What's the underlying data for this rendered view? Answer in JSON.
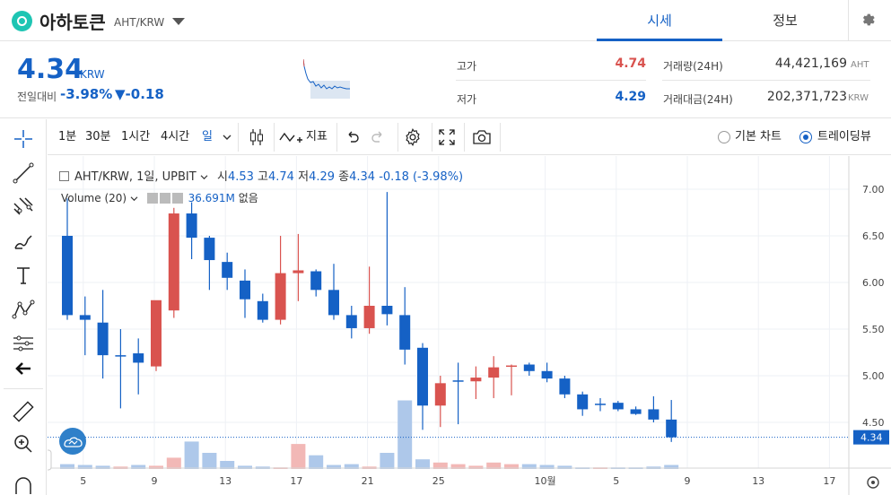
{
  "header": {
    "coin_name": "아하토큰",
    "pair": "AHT/KRW",
    "tabs": [
      {
        "label": "시세",
        "active": true
      },
      {
        "label": "정보",
        "active": false
      }
    ]
  },
  "summary": {
    "price": "4.34",
    "unit": "KRW",
    "change_label": "전일대비",
    "change_rate": "-3.98%",
    "change_value": "▼-0.18",
    "high_label": "고가",
    "high_value": "4.74",
    "low_label": "저가",
    "low_value": "4.29",
    "volume_label": "거래량(24H)",
    "volume_value": "44,421,169",
    "volume_unit": "AHT",
    "amount_label": "거래대금(24H)",
    "amount_value": "202,371,723",
    "amount_unit": "KRW"
  },
  "toolbar": {
    "intervals": [
      "1분",
      "30분",
      "1시간",
      "4시간",
      "일"
    ],
    "active_interval": "일",
    "indicator_label": "지표",
    "basic_chart_label": "기본 차트",
    "tradingview_label": "트레이딩뷰"
  },
  "legend": {
    "symbol": "AHT/KRW, 1일, UPBIT",
    "open_label": "시",
    "open": "4.53",
    "high_label": "고",
    "high": "4.74",
    "low_label": "저",
    "low": "4.29",
    "close_label": "종",
    "close": "4.34",
    "change": "-0.18 (-3.98%)",
    "volume_title": "Volume (20)",
    "volume_value": "36.691M",
    "volume_extra": "없음"
  },
  "colors": {
    "up": "#d9534f",
    "down": "#1561c5",
    "accent": "#1561c5"
  },
  "chart_data": {
    "type": "candlestick",
    "y_axis_ticks": [
      "7.00",
      "6.50",
      "6.00",
      "5.50",
      "5.00",
      "4.50"
    ],
    "x_axis_ticks": [
      "5",
      "9",
      "13",
      "17",
      "21",
      "25",
      "10월",
      "5",
      "9",
      "13",
      "17"
    ],
    "ylim": [
      4.0,
      7.2
    ],
    "last_price_label": "4.34",
    "candles": [
      {
        "o": 6.5,
        "h": 6.9,
        "l": 5.6,
        "c": 5.65
      },
      {
        "o": 5.65,
        "h": 5.85,
        "l": 5.22,
        "c": 5.6
      },
      {
        "o": 5.57,
        "h": 5.92,
        "l": 4.97,
        "c": 5.22
      },
      {
        "o": 5.22,
        "h": 5.5,
        "l": 4.65,
        "c": 5.22
      },
      {
        "o": 5.24,
        "h": 5.4,
        "l": 4.8,
        "c": 5.14
      },
      {
        "o": 5.1,
        "h": 5.8,
        "l": 5.05,
        "c": 5.81
      },
      {
        "o": 5.7,
        "h": 6.8,
        "l": 5.62,
        "c": 6.74
      },
      {
        "o": 6.74,
        "h": 6.86,
        "l": 6.25,
        "c": 6.48
      },
      {
        "o": 6.48,
        "h": 6.5,
        "l": 5.92,
        "c": 6.24
      },
      {
        "o": 6.22,
        "h": 6.32,
        "l": 5.92,
        "c": 6.05
      },
      {
        "o": 6.02,
        "h": 6.14,
        "l": 5.62,
        "c": 5.82
      },
      {
        "o": 5.8,
        "h": 5.88,
        "l": 5.57,
        "c": 5.6
      },
      {
        "o": 5.6,
        "h": 6.5,
        "l": 5.55,
        "c": 6.1
      },
      {
        "o": 6.1,
        "h": 6.52,
        "l": 5.8,
        "c": 6.13
      },
      {
        "o": 6.12,
        "h": 6.14,
        "l": 5.85,
        "c": 5.92
      },
      {
        "o": 5.92,
        "h": 6.2,
        "l": 5.6,
        "c": 5.65
      },
      {
        "o": 5.65,
        "h": 5.75,
        "l": 5.4,
        "c": 5.51
      },
      {
        "o": 5.51,
        "h": 6.17,
        "l": 5.45,
        "c": 5.75
      },
      {
        "o": 5.75,
        "h": 6.97,
        "l": 5.54,
        "c": 5.66
      },
      {
        "o": 5.65,
        "h": 5.95,
        "l": 5.12,
        "c": 5.28
      },
      {
        "o": 5.3,
        "h": 5.35,
        "l": 4.42,
        "c": 4.68
      },
      {
        "o": 4.68,
        "h": 5.0,
        "l": 4.45,
        "c": 4.92
      },
      {
        "o": 4.95,
        "h": 5.14,
        "l": 4.48,
        "c": 4.95
      },
      {
        "o": 4.94,
        "h": 5.1,
        "l": 4.75,
        "c": 4.98
      },
      {
        "o": 4.98,
        "h": 5.21,
        "l": 4.76,
        "c": 5.09
      },
      {
        "o": 5.1,
        "h": 5.12,
        "l": 4.79,
        "c": 5.11
      },
      {
        "o": 5.12,
        "h": 5.14,
        "l": 5.0,
        "c": 5.05
      },
      {
        "o": 5.05,
        "h": 5.14,
        "l": 4.93,
        "c": 4.97
      },
      {
        "o": 4.97,
        "h": 5.0,
        "l": 4.76,
        "c": 4.8
      },
      {
        "o": 4.8,
        "h": 4.83,
        "l": 4.57,
        "c": 4.64
      },
      {
        "o": 4.7,
        "h": 4.76,
        "l": 4.62,
        "c": 4.7
      },
      {
        "o": 4.71,
        "h": 4.73,
        "l": 4.62,
        "c": 4.64
      },
      {
        "o": 4.64,
        "h": 4.67,
        "l": 4.58,
        "c": 4.59
      },
      {
        "o": 4.64,
        "h": 4.78,
        "l": 4.5,
        "c": 4.53
      },
      {
        "o": 4.53,
        "h": 4.74,
        "l": 4.29,
        "c": 4.34
      }
    ],
    "volumes": [
      0.06,
      0.05,
      0.04,
      0.03,
      0.05,
      0.04,
      0.14,
      0.34,
      0.2,
      0.1,
      0.04,
      0.03,
      0.02,
      0.31,
      0.17,
      0.05,
      0.06,
      0.03,
      0.2,
      0.85,
      0.12,
      0.08,
      0.06,
      0.04,
      0.08,
      0.06,
      0.06,
      0.05,
      0.04,
      0.02,
      0.02,
      0.02,
      0.02,
      0.03,
      0.05
    ]
  }
}
